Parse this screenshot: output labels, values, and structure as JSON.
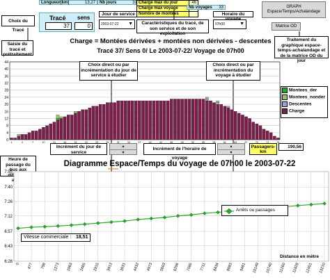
{
  "header": {
    "choix_trace": "Choix du Tracé",
    "longueur_label": "Longueur(km)",
    "longueur_value": "13,27",
    "nb_jours_label": "Nb jours",
    "nb_jours_value": "31",
    "trace_label": "Tracé",
    "sens_label": "sens",
    "trace_value": "37",
    "sens_value": "0",
    "jour_label": "Jour de service",
    "jour_value": "2003-07-22",
    "charge_moy_label": "Charge max du jour",
    "charge_moy_value": "46",
    "charge_voy_label": "Charge max voyage",
    "charge_voy_value": "23",
    "nb_montees_label": "Nombre de montées",
    "nb_montees_value": "",
    "nb_voyages_label": "Nb voyages",
    "nb_voyages_value": "33",
    "horaire_label": "Horaire du voyage",
    "horaire_value": "07h00",
    "graph_btn": "GRAPH Espace/Temps/Achalandage",
    "matrice_btn": "Matrice OD",
    "saisie_callout": "Saisie du tracé et prétraitement",
    "caract_callout": "Caractéristiques du tracé, de son service et de son exploitation",
    "traitement_callout": "Traitement du graphique espace-temps-achalandage et de la matrice OD du jour"
  },
  "charge_chart": {
    "title_line1": "Charge = Montées dérivées + montées non dérivées - descentes",
    "title_line2": "Tracé 37/ Sens 0/ Le 2003-07-22/ Voyage de 07h00",
    "callout_jour": "Choix direct ou par incrémentation du jour de service à étudier",
    "callout_voyage": "Choix direct ou par incrémentation du voyage à étudier",
    "y_ticks": [
      "44",
      "40",
      "36",
      "32",
      "28",
      "24",
      "20",
      "16",
      "12",
      "8",
      "4",
      "0"
    ],
    "legend": [
      {
        "label": "Montees_der",
        "color": "#22aa22"
      },
      {
        "label": "Montees_nonder",
        "color": "#9cc06a"
      },
      {
        "label": "Descentes",
        "color": "#9aa0e0"
      },
      {
        "label": "Charge",
        "color": "#7a1f4a"
      }
    ]
  },
  "controls": {
    "inc_jour_label": "Incrément du jour de service",
    "inc_horaire_label": "Incrément de l'horaire de voyage",
    "spin_up": "▲",
    "spin_down": "▼",
    "passagers_label": "Passagers-km",
    "passagers_value": "190,56"
  },
  "space_time": {
    "title": "Diagramme Espace/Temps du voyage de 07h00 le 2003-07-22",
    "side_label": "Heure de passage du bus aux différents arrêts",
    "y_ticks": [
      "7:55",
      "7:40",
      "7:26",
      "7:12",
      "6:57",
      "6:43",
      "6:28"
    ],
    "x_ticks": [
      "0",
      "477",
      "798",
      "1273",
      "1963",
      "2465",
      "2915",
      "3413",
      "3931",
      "4432",
      "4973",
      "5603",
      "6296",
      "7085",
      "7711",
      "8434",
      "8983",
      "9461",
      "10149",
      "10740",
      "11260",
      "11828",
      "12401",
      "13210"
    ],
    "legend": "Arrêts ou passages",
    "vitesse_label": "Vitesse commerciale :",
    "vitesse_value": "18,51",
    "distance_label": "Distance en mètre"
  },
  "chart_data": [
    {
      "type": "bar",
      "title": "Charge = Montées dérivées + montées non dérivées - descentes",
      "subtitle": "Tracé 37/ Sens 0/ Le 2003-07-22/ Voyage de 07h00",
      "ylim": [
        0,
        44
      ],
      "categories": [
        "1",
        "2",
        "3",
        "4",
        "5",
        "6",
        "7",
        "8",
        "9",
        "10",
        "11",
        "12",
        "13",
        "14",
        "15",
        "16",
        "17",
        "18",
        "19",
        "20",
        "21",
        "22",
        "23",
        "24",
        "25",
        "26",
        "27",
        "28",
        "29",
        "30",
        "31",
        "32",
        "33",
        "34",
        "35",
        "36",
        "37",
        "38",
        "39",
        "40",
        "41",
        "42",
        "43",
        "44",
        "45",
        "46",
        "47",
        "48",
        "49",
        "50",
        "51",
        "52",
        "53",
        "54",
        "55",
        "56",
        "57",
        "58",
        "59",
        "60",
        "61",
        "62",
        "63",
        "64",
        "65",
        "66",
        "67",
        "68",
        "69",
        "70",
        "71",
        "72",
        "73",
        "74",
        "75",
        "76"
      ],
      "series": [
        {
          "name": "Charge",
          "values": [
            1,
            1,
            2,
            3,
            3,
            4,
            5,
            5,
            6,
            7,
            8,
            9,
            10,
            11,
            12,
            13,
            14,
            14,
            15,
            16,
            17,
            17,
            18,
            19,
            19,
            20,
            20,
            21,
            21,
            21,
            22,
            22,
            22,
            22,
            22,
            22,
            22,
            22,
            22,
            22,
            22,
            22,
            22,
            22,
            22,
            23,
            23,
            23,
            23,
            23,
            23,
            23,
            23,
            23,
            23,
            22,
            22,
            21,
            20,
            20,
            19,
            18,
            17,
            16,
            15,
            14,
            13,
            12,
            10,
            9,
            8,
            6,
            5,
            4,
            2,
            1
          ]
        },
        {
          "name": "Montees_der",
          "values": [
            0,
            0,
            0,
            0,
            0,
            0,
            0,
            0,
            0,
            0,
            0,
            0,
            0,
            1,
            0,
            0,
            0,
            0,
            0,
            0,
            0,
            0,
            0,
            0,
            0,
            0,
            0,
            0,
            0,
            0,
            0,
            0,
            0,
            0,
            0,
            0,
            0,
            0,
            0,
            0,
            0,
            0,
            0,
            0,
            0,
            0,
            0,
            0,
            0,
            0,
            0,
            0,
            0,
            0,
            0,
            0,
            0,
            0,
            0,
            0,
            0,
            0,
            0,
            0,
            0,
            0,
            0,
            0,
            0,
            0,
            0,
            0,
            0,
            0,
            0,
            0
          ]
        },
        {
          "name": "Montees_nonder",
          "values": [
            0,
            0,
            1,
            0,
            0,
            0,
            0,
            0,
            0,
            0,
            0,
            0,
            0,
            2,
            1,
            0,
            0,
            0,
            1,
            0,
            0,
            0,
            0,
            0,
            0,
            0,
            0,
            0,
            0,
            0,
            0,
            0,
            0,
            0,
            0,
            0,
            0,
            0,
            0,
            0,
            0,
            0,
            0,
            0,
            0,
            0,
            0,
            0,
            0,
            0,
            0,
            0,
            0,
            0,
            0,
            1,
            0,
            0,
            1,
            0,
            0,
            0,
            0,
            0,
            0,
            0,
            0,
            0,
            0,
            0,
            0,
            0,
            0,
            0,
            0,
            0
          ]
        },
        {
          "name": "Descentes",
          "values": [
            0,
            0,
            0,
            0,
            0,
            0,
            0,
            0,
            0,
            0,
            0,
            0,
            0,
            0,
            0,
            0,
            0,
            0,
            0,
            0,
            0,
            0,
            0,
            0,
            0,
            0,
            0,
            0,
            0,
            0,
            0,
            0,
            0,
            0,
            0,
            0,
            0,
            0,
            0,
            0,
            0,
            0,
            0,
            0,
            0,
            0,
            0,
            0,
            0,
            0,
            0,
            0,
            0,
            0,
            0,
            1,
            0,
            0,
            1,
            0,
            0,
            1,
            0,
            0,
            0,
            0,
            0,
            0,
            0,
            0,
            0,
            0,
            0,
            0,
            0,
            0
          ]
        }
      ]
    },
    {
      "type": "line",
      "title": "Diagramme Espace/Temps du voyage de 07h00 le 2003-07-22",
      "xlabel": "Distance en mètre",
      "ylabel": "Heure de passage du bus aux différents arrêts",
      "series": [
        {
          "name": "Arrêts ou passages",
          "x": [
            0,
            477,
            798,
            1273,
            1963,
            2465,
            2915,
            3413,
            3931,
            4432,
            4973,
            5603,
            6296,
            7085,
            7711,
            8434,
            8983,
            9461,
            10149,
            10740,
            11260,
            11828,
            12401,
            13210
          ],
          "y": [
            420.0,
            421.0,
            421.5,
            422.2,
            423.0,
            424.0,
            425.0,
            426.0,
            427.0,
            428.5,
            429.5,
            430.5,
            432.0,
            433.0,
            434.5,
            435.5,
            436.5,
            437.5,
            439.0,
            440.0,
            441.0,
            442.0,
            443.0,
            444.0
          ]
        }
      ],
      "ylim_minutes": [
        388,
        475
      ]
    }
  ]
}
